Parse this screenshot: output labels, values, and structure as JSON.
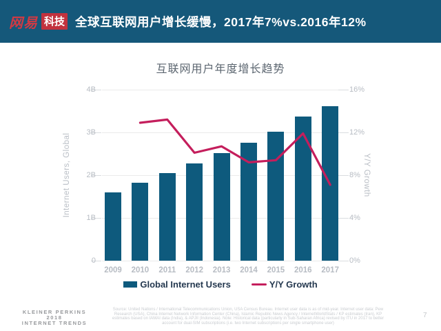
{
  "header": {
    "logo_text": "网易",
    "logo_badge": "科技",
    "title": "全球互联网用户增长缓慢，2017年7%vs.2016年12%"
  },
  "chart_data": {
    "type": "bar",
    "title": "互联网用户年度增长趋势",
    "categories": [
      "2009",
      "2010",
      "2011",
      "2012",
      "2013",
      "2014",
      "2015",
      "2016",
      "2017"
    ],
    "series": [
      {
        "name": "Global Internet Users",
        "type": "bar",
        "axis": "left",
        "values": [
          1.6,
          1.83,
          2.05,
          2.28,
          2.51,
          2.76,
          3.02,
          3.37,
          3.62
        ]
      },
      {
        "name": "Y/Y Growth",
        "type": "line",
        "axis": "right",
        "values": [
          null,
          12.9,
          13.2,
          10.1,
          10.7,
          9.2,
          9.4,
          11.9,
          7.1
        ]
      }
    ],
    "left_axis": {
      "label": "Internet Users, Global",
      "ticks": [
        "4B",
        "3B",
        "2B",
        "1B",
        "0"
      ],
      "min": 0,
      "max": 4
    },
    "right_axis": {
      "label": "Y/Y Growth",
      "ticks": [
        "16%",
        "12%",
        "8%",
        "4%",
        "0%"
      ],
      "min": 0,
      "max": 16
    },
    "grid": true,
    "legend_position": "bottom",
    "colors": {
      "bar": "#0e5a7d",
      "line": "#c41e5c"
    }
  },
  "legend": [
    {
      "label": "Global Internet Users",
      "swatch": "bar"
    },
    {
      "label": "Y/Y Growth",
      "swatch": "line"
    }
  ],
  "footer": {
    "brand_lines": [
      "KLEINER PERKINS",
      "2018",
      "INTERNET TRENDS"
    ],
    "source_text": "Source: United Nations / International Telecommunications Union, USA Census Bureau. Internet user data is as of mid-year. Internet user data: Pew Research (USA), China Internet Network Information Center (China), Islamic Republic News Agency / InternetWorldStats / KP estimates (Iran), KP estimates based on IAMAI data (India), & APJII (Indonesia). Note: Historical data (particularly in Sub-Saharan Africa) revised by ITU in 2017 to better account for dual-SIM subscriptions (i.e. two Internet subscriptions per single smartphone user)",
    "page_number": "7"
  }
}
